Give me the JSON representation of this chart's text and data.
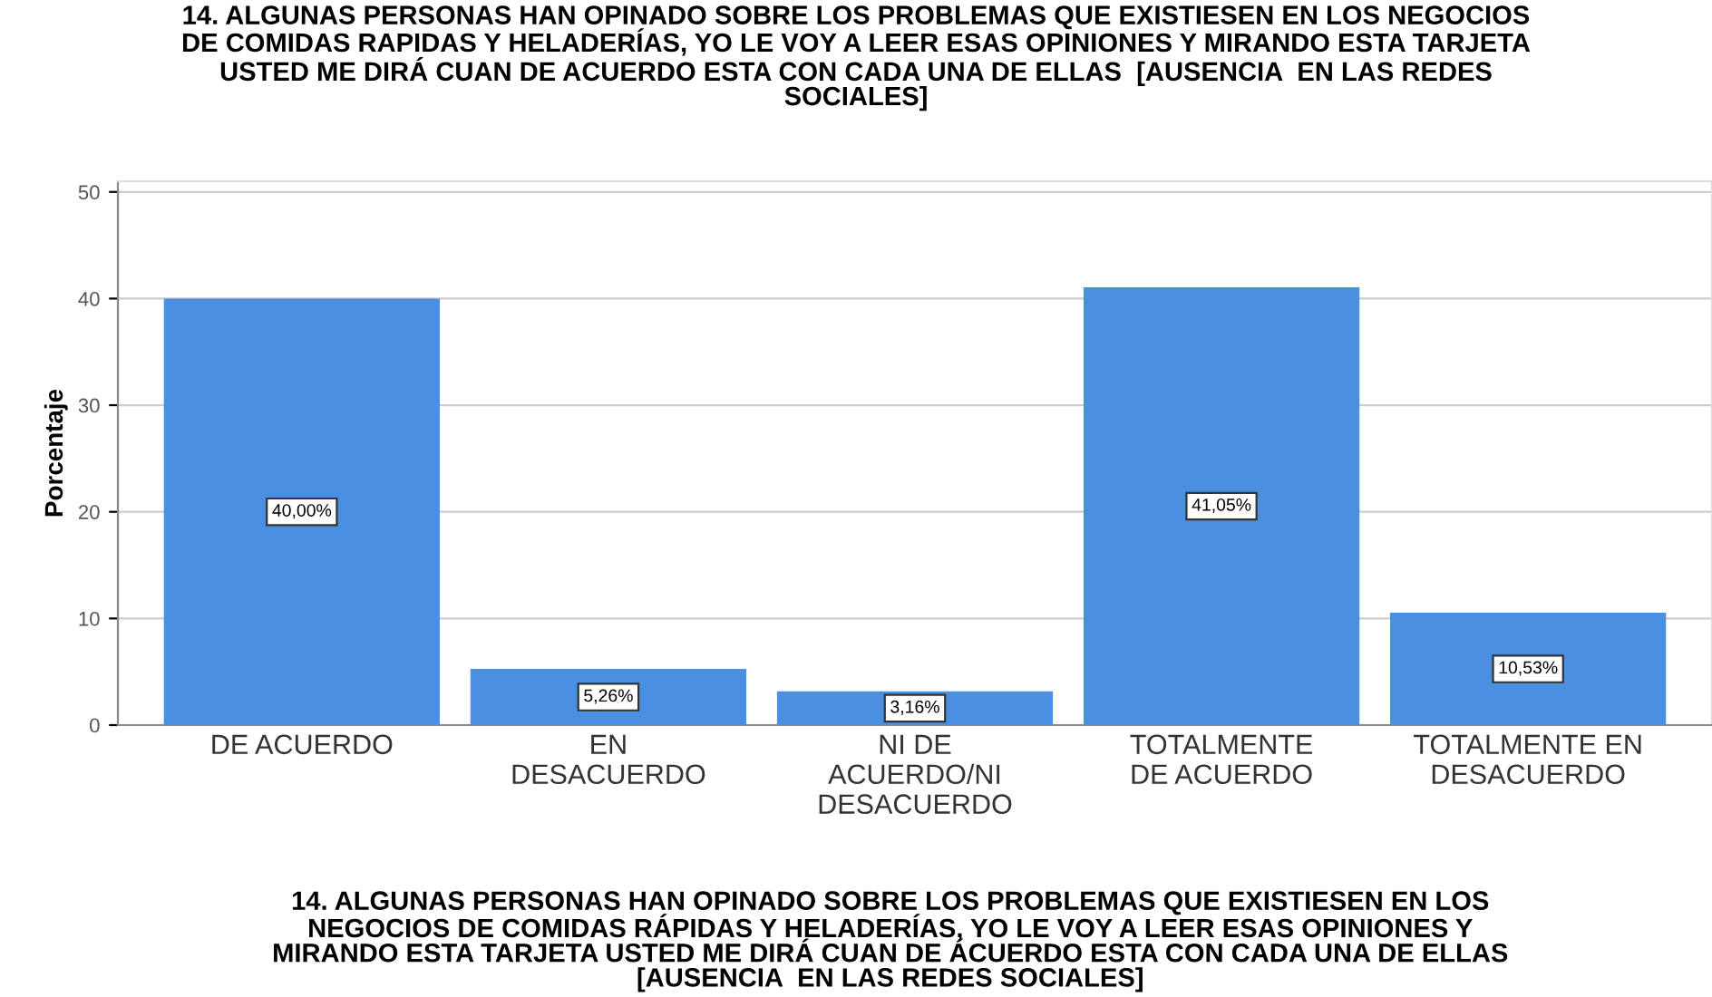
{
  "chart_data": {
    "type": "bar",
    "title": "14. ALGUNAS PERSONAS HAN OPINADO SOBRE LOS PROBLEMAS QUE EXISTIESEN EN LOS NEGOCIOS\nDE COMIDAS RAPIDAS Y HELADERÍAS, YO LE VOY A LEER ESAS OPINIONES Y MIRANDO ESTA TARJETA\nUSTED ME DIRÁ CUAN DE ACUERDO ESTA CON CADA UNA DE ELLAS  [AUSENCIA  EN LAS REDES\nSOCIALES]",
    "xlabel": "14. ALGUNAS PERSONAS HAN OPINADO SOBRE LOS PROBLEMAS QUE EXISTIESEN EN LOS\nNEGOCIOS DE COMIDAS RÁPIDAS Y HELADERÍAS, YO LE VOY A LEER ESAS OPINIONES Y\nMIRANDO ESTA TARJETA USTED ME DIRÁ CUAN DE ÁCUERDO ESTA CON CADA UNA DE ELLAS\n[AUSENCIA  EN LAS REDES SOCIALES]",
    "ylabel": "Porcentaje",
    "categories": [
      "DE ACUERDO",
      "EN\nDESACUERDO",
      "NI DE\nACUERDO/NI\nDESACUERDO",
      "TOTALMENTE\nDE ACUERDO",
      "TOTALMENTE EN\nDESACUERDO"
    ],
    "values": [
      40.0,
      5.26,
      3.16,
      41.05,
      10.53
    ],
    "value_labels": [
      "40,00%",
      "5,26%",
      "3,16%",
      "41,05%",
      "10,53%"
    ],
    "color": "#4a8fe0",
    "ylim": [
      0,
      51
    ],
    "yticks": [
      0,
      10,
      20,
      30,
      40,
      50
    ],
    "grid": "y"
  }
}
